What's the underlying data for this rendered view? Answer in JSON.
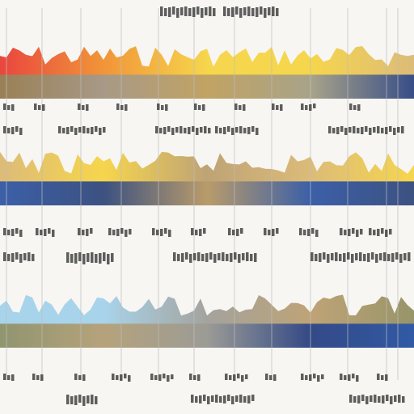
{
  "image": {
    "description_free": true,
    "palette": {
      "background": "#f7f6f3",
      "red": "#e8322a",
      "orange": "#f08a24",
      "yellow": "#f6d23a",
      "sand": "#d9b56b",
      "tan": "#b89a68",
      "olive": "#8c8a5a",
      "blue": "#1f4fb0",
      "navy": "#1b3a8a",
      "skyblue": "#9fd0ea",
      "grey": "#9a9a94",
      "ink": "#2b2b2b",
      "gridline": "#bdbdbd"
    },
    "bands": [
      {
        "name": "band-top",
        "gradient": [
          "red",
          "orange",
          "yellow",
          "yellow",
          "sand"
        ],
        "ground": [
          "olive",
          "grey",
          "tan",
          "grey",
          "navy"
        ]
      },
      {
        "name": "band-middle",
        "gradient": [
          "sand",
          "yellow",
          "tan",
          "sand",
          "yellow"
        ],
        "ground": [
          "blue",
          "navy",
          "tan",
          "blue",
          "navy"
        ]
      },
      {
        "name": "band-bottom",
        "gradient": [
          "skyblue",
          "skyblue",
          "grey",
          "tan",
          "olive"
        ],
        "ground": [
          "olive",
          "tan",
          "grey",
          "navy",
          "blue"
        ]
      }
    ]
  }
}
